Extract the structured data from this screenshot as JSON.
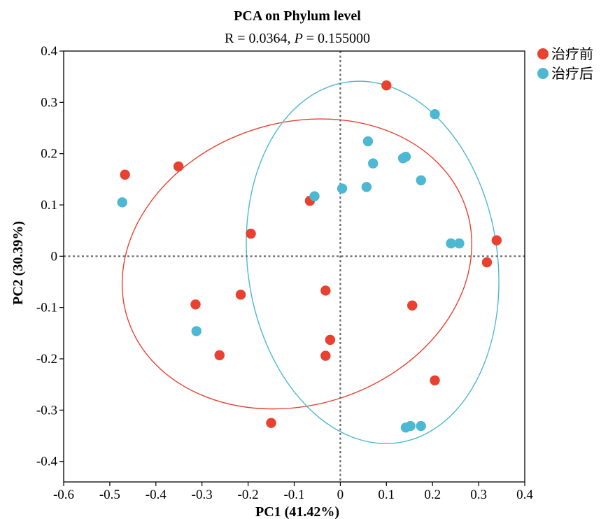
{
  "chart_data": {
    "type": "scatter",
    "title": "PCA on Phylum level",
    "subtitle": {
      "prefix": "R = 0.0364, ",
      "p_symbol": "P",
      "suffix": " = 0.155000"
    },
    "xlabel": "PC1 (41.42%)",
    "ylabel": "PC2 (30.39%)",
    "xlim": [
      -0.6,
      0.4
    ],
    "ylim": [
      -0.44,
      0.4
    ],
    "xticks": [
      -0.6,
      -0.5,
      -0.4,
      -0.3,
      -0.2,
      -0.1,
      0,
      0.1,
      0.2,
      0.3,
      0.4
    ],
    "yticks": [
      -0.4,
      -0.3,
      -0.2,
      -0.1,
      0,
      0.1,
      0.2,
      0.3,
      0.4
    ],
    "xtick_labels": [
      "-0.6",
      "-0.5",
      "-0.4",
      "-0.3",
      "-0.2",
      "-0.1",
      "0",
      "0.1",
      "0.2",
      "0.3",
      "0.4"
    ],
    "ytick_labels": [
      "-0.4",
      "-0.3",
      "-0.2",
      "-0.1",
      "0",
      "0.1",
      "0.2",
      "0.3",
      "0.4"
    ],
    "grid": false,
    "reference_lines": "dotted x=0 and y=0",
    "legend_position": "top-right, outside plot",
    "series": [
      {
        "name": "治疗前",
        "color": "#E8412F",
        "points": [
          [
            -0.467,
            0.159
          ],
          [
            -0.351,
            0.175
          ],
          [
            -0.194,
            0.044
          ],
          [
            -0.066,
            0.108
          ],
          [
            0.1,
            0.333
          ],
          [
            -0.314,
            -0.094
          ],
          [
            -0.216,
            -0.075
          ],
          [
            -0.032,
            -0.067
          ],
          [
            -0.022,
            -0.163
          ],
          [
            -0.032,
            -0.194
          ],
          [
            -0.262,
            -0.193
          ],
          [
            -0.15,
            -0.325
          ],
          [
            0.156,
            -0.096
          ],
          [
            0.205,
            -0.242
          ],
          [
            0.318,
            -0.012
          ],
          [
            0.339,
            0.031
          ]
        ],
        "ellipse": {
          "center": [
            -0.094,
            -0.015
          ],
          "rx": 0.386,
          "ry": 0.275,
          "rotation_deg": -18
        }
      },
      {
        "name": "治疗后",
        "color": "#4CB8D2",
        "points": [
          [
            -0.473,
            0.105
          ],
          [
            -0.312,
            -0.146
          ],
          [
            -0.056,
            0.117
          ],
          [
            0.004,
            0.132
          ],
          [
            0.06,
            0.224
          ],
          [
            0.071,
            0.181
          ],
          [
            0.057,
            0.135
          ],
          [
            0.136,
            0.191
          ],
          [
            0.142,
            0.194
          ],
          [
            0.175,
            0.148
          ],
          [
            0.205,
            0.277
          ],
          [
            0.24,
            0.025
          ],
          [
            0.258,
            0.025
          ],
          [
            0.142,
            -0.334
          ],
          [
            0.152,
            -0.331
          ],
          [
            0.175,
            -0.331
          ]
        ],
        "ellipse": {
          "center": [
            0.07,
            -0.012
          ],
          "rx": 0.271,
          "ry": 0.355,
          "rotation_deg": -8
        }
      }
    ]
  }
}
